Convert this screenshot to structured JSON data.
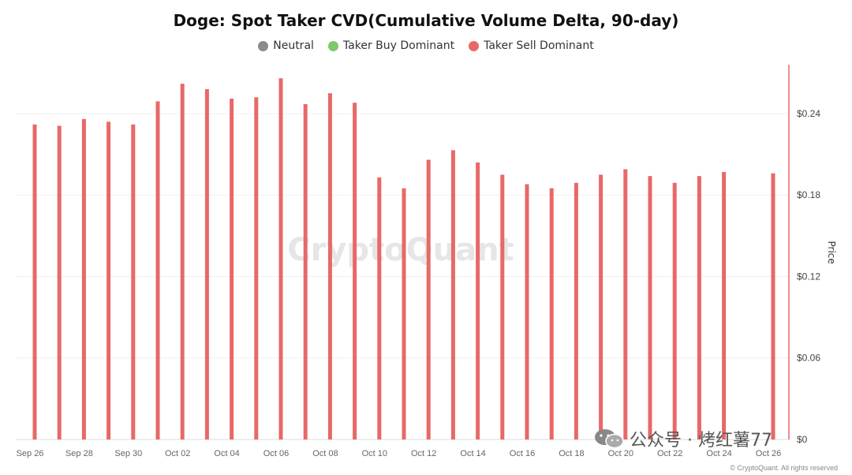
{
  "chart_data": {
    "type": "bar",
    "title": "Doge: Spot Taker CVD(Cumulative Volume Delta, 90-day)",
    "legend": [
      {
        "name": "Neutral",
        "color": "#8a8a8a"
      },
      {
        "name": "Taker Buy Dominant",
        "color": "#7cc96b"
      },
      {
        "name": "Taker Sell Dominant",
        "color": "#e86868"
      }
    ],
    "legend_position": "top-center",
    "x_tick_labels": [
      "Sep 26",
      "Sep 28",
      "Sep 30",
      "Oct 02",
      "Oct 04",
      "Oct 06",
      "Oct 08",
      "Oct 10",
      "Oct 12",
      "Oct 14",
      "Oct 16",
      "Oct 18",
      "Oct 20",
      "Oct 22",
      "Oct 24",
      "Oct 26"
    ],
    "categories": [
      "Sep 26",
      "Sep 27",
      "Sep 28",
      "Sep 29",
      "Sep 30",
      "Oct 01",
      "Oct 02",
      "Oct 03",
      "Oct 04",
      "Oct 05",
      "Oct 06",
      "Oct 07",
      "Oct 08",
      "Oct 09",
      "Oct 10",
      "Oct 11",
      "Oct 12",
      "Oct 13",
      "Oct 14",
      "Oct 15",
      "Oct 16",
      "Oct 17",
      "Oct 18",
      "Oct 19",
      "Oct 20",
      "Oct 21",
      "Oct 22",
      "Oct 23",
      "Oct 24",
      "Oct 26"
    ],
    "series": [
      {
        "name": "Taker Sell Dominant",
        "color": "#e86868",
        "values": [
          0.232,
          0.231,
          0.236,
          0.234,
          0.232,
          0.249,
          0.262,
          0.258,
          0.251,
          0.252,
          0.266,
          0.247,
          0.255,
          0.248,
          0.193,
          0.185,
          0.206,
          0.213,
          0.204,
          0.195,
          0.188,
          0.185,
          0.189,
          0.195,
          0.199,
          0.194,
          0.189,
          0.194,
          0.197,
          0.196
        ]
      }
    ],
    "y_axis": {
      "label": "Price",
      "position": "right",
      "ticks": [
        "$0",
        "$0.06",
        "$0.12",
        "$0.18",
        "$0.24"
      ],
      "ylim": [
        0,
        0.276
      ]
    },
    "grid": true,
    "watermark": "CryptoQuant"
  },
  "overlay": {
    "wechat_text": "公众号 · 烤红薯77",
    "copyright": "© CryptoQuant. All rights reserved"
  }
}
